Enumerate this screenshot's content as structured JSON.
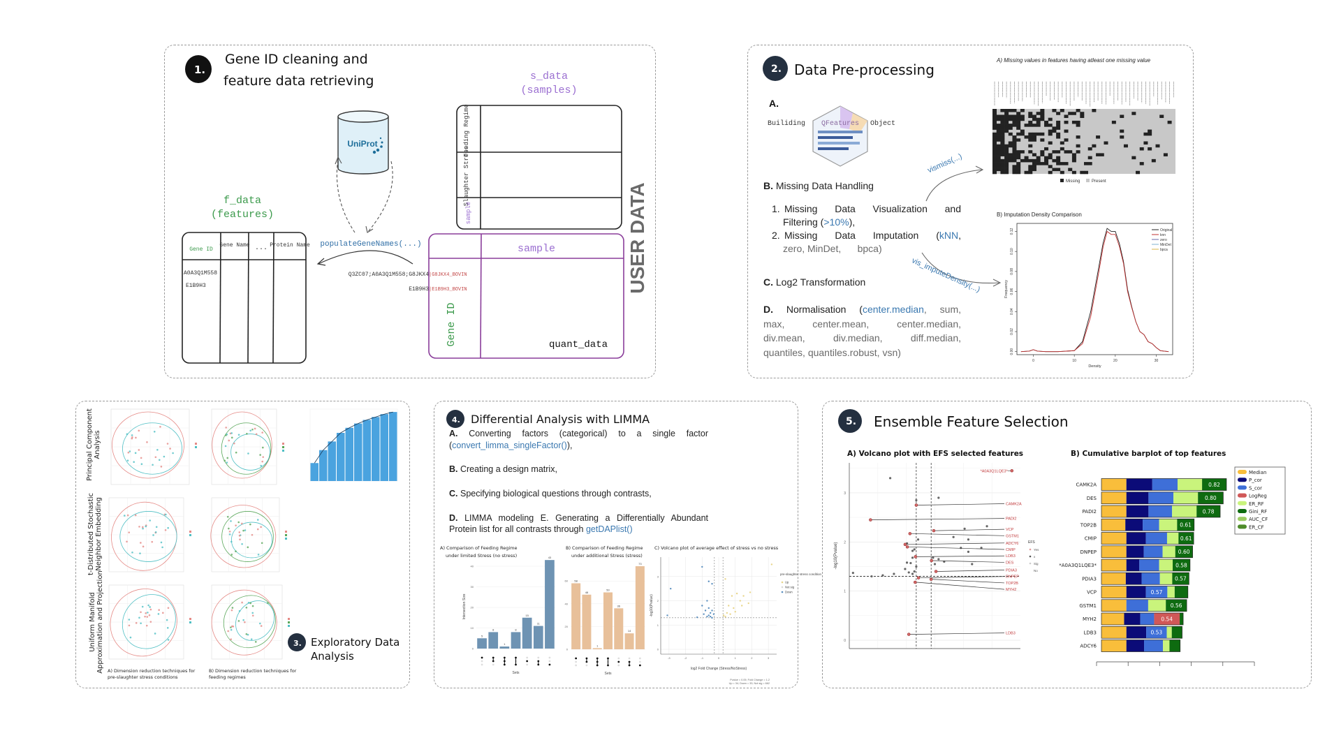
{
  "panel1": {
    "badge": "1.",
    "title_line1": "Gene ID  cleaning and",
    "title_line2": "feature data retrieving",
    "s_data_label": "s_data",
    "s_data_sub": "(samples)",
    "s_data_rows": [
      "Feeding Regime",
      "Slaughter Stress",
      "sample"
    ],
    "uniprot_logo": "UniProt",
    "f_data_label": "f_data",
    "f_data_sub": "(features)",
    "f_data_columns": [
      "Gene ID",
      "Gene Name",
      "...",
      "Protein Name"
    ],
    "f_data_values": [
      "A0A3Q1M558",
      "E1B9H3"
    ],
    "function_label": "populateGeneNames(...)",
    "raw_id_1_prefix": "Q3ZC07;A0A3Q1M558;G8JKX4",
    "raw_id_1_suffix": "|G8JKX4_BOVIN",
    "raw_id_2_prefix": "E1B9H3",
    "raw_id_2_suffix": "|E1B9H3_BOVIN",
    "quant_col_header": "sample",
    "quant_row_header": "Gene ID",
    "quant_label": "quant_data",
    "side_label": "USER DATA",
    "colors": {
      "purple": "#9b6fd1",
      "green": "#3c9a4c",
      "blue": "#2f6ea6",
      "red": "#c44a4a"
    }
  },
  "panel2": {
    "badge": "2.",
    "title": "Data Pre-processing",
    "a_label": "A.",
    "building": "Builiding",
    "qfeatures": "QFeatures",
    "object": "Object",
    "b_label": "B.",
    "b_text": "Missing Data Handling",
    "item1_num": "1.",
    "item1_text": "Missing Data Visualization and",
    "item1_text2a": "Filtering (",
    "item1_highlight": ">10%",
    "item1_text2b": "),",
    "item2_num": "2.",
    "item2_text": "Missing Data Imputation (",
    "item2_highlight": "kNN",
    "item2_text_end": ",",
    "item2_rest": "zero, MinDet,      bpca)",
    "c_label": "C.",
    "c_text": "Log2 Transformation",
    "d_label": "D.",
    "d_text": "Normalisation (",
    "d_highlight": "center.median",
    "d_rest1": ", sum,",
    "d_rest2": "max,  center.mean,  center.median,",
    "d_rest3": "div.mean,  div.median,  diff.median,",
    "d_rest4": "quantiles, quantiles.robust, vsn)",
    "arrow1_label": "vismiss(...)",
    "arrow2_label": "vis_imputeDensity(...)",
    "heatmap_title": "A) Missing values in features having atleast one missing value",
    "heatmap_legend": [
      "Missing",
      "Present"
    ],
    "heatmap_colors": {
      "missing": "#222222",
      "present": "#c8c8c8"
    }
  },
  "panel3": {
    "badge": "3.",
    "title_line1": "Exploratory Data",
    "title_line2": "Analysis",
    "row_labels": [
      [
        "Principal Component",
        "Analysis"
      ],
      [
        "t-Distributed Stochastic",
        "Neighbor Embedding"
      ],
      [
        "Uniform Manifold",
        "Approximation and Projection"
      ]
    ],
    "caption_a": [
      "A) Dimension reduction techniques for",
      "pre-slaughter stress conditions"
    ],
    "caption_b": [
      "B) Dimension reduction techniques for",
      "feeding regimes"
    ],
    "colors": {
      "red": "#e58a86",
      "teal": "#4fbfc4",
      "green": "#5aa75a",
      "bar": "#4aa3df"
    }
  },
  "panel4": {
    "badge": "4.",
    "title": "Differential Analysis with LIMMA",
    "a_label": "A.",
    "a_text": "Converting factors (categorical) to a single factor",
    "a_func": "convert_limma_singleFactor()",
    "b_label": "B.",
    "b_text": "Creating a design matrix,",
    "c_label": "C.",
    "c_text": "Specifying biological questions through contrasts,",
    "d_label": "D.",
    "d_text": "LIMMA modeling E. Generating a Differentially Abundant",
    "d_text2": "Protein list for all contrasts through ",
    "d_func": "getDAPlist()"
  },
  "panel5": {
    "badge": "5.",
    "title": "Ensemble Feature Selection"
  },
  "chart_data": [
    {
      "id": "upset_a",
      "type": "bar",
      "title": [
        "A) Comparison of Feeding Regime",
        "under limited Stress (no stress)"
      ],
      "ylabel": "Intersection Size",
      "xlabel": "Sets",
      "ylim": [
        0,
        45
      ],
      "yticks": [
        0,
        10,
        20,
        30,
        40
      ],
      "values": [
        5,
        8,
        1,
        8,
        15,
        11,
        43
      ],
      "set_membership": [
        [
          1
        ],
        [
          1,
          2
        ],
        [
          1,
          2,
          3
        ],
        [
          1,
          3
        ],
        [
          2
        ],
        [
          2,
          3
        ],
        [
          3
        ]
      ],
      "color": "#6e93b3"
    },
    {
      "id": "upset_b",
      "type": "bar",
      "title": [
        "B) Comparison of Feeding Regime",
        "under additional Stress (stress)"
      ],
      "xlabel": "Sets",
      "ylim": [
        0,
        75
      ],
      "yticks": [
        0,
        20,
        40,
        60
      ],
      "values": [
        58,
        48,
        1,
        50,
        36,
        14,
        73
      ],
      "set_membership": [
        [
          1
        ],
        [
          1,
          2
        ],
        [
          1,
          2,
          3
        ],
        [
          1,
          3
        ],
        [
          2
        ],
        [
          2,
          3
        ],
        [
          3
        ]
      ],
      "color": "#e8c09a"
    },
    {
      "id": "volcano_stress",
      "type": "scatter",
      "title": "C) Volcano plot of average effect of stress vs no stress",
      "xlabel": "log2 Fold Change (Stress/NoStress)",
      "ylabel": "-log10(Pvalue)",
      "xlim": [
        -3.5,
        3.5
      ],
      "ylim": [
        -0.2,
        3.8
      ],
      "xticks": [
        -3,
        -2,
        -1,
        0,
        1,
        2,
        3
      ],
      "yticks": [
        0,
        1,
        2,
        3
      ],
      "thresholds": {
        "x": [
          -0.26,
          0.26
        ],
        "y": 1.3
      },
      "legend_title": "pre-slaughter stress condition",
      "legend": [
        {
          "name": "Up",
          "color": "#e8d58a"
        },
        {
          "name": "Not sig",
          "color": "#d8d8d8"
        },
        {
          "name": "Down",
          "color": "#5b8fbf"
        }
      ],
      "caption": [
        "Pvalue = 0.05; Fold Change = 1.2",
        "Up = 34; Down = 33; Not sig = 662"
      ],
      "down_points": [
        [
          -1.0,
          3.4
        ],
        [
          -0.6,
          2.8
        ],
        [
          -0.4,
          2.7
        ],
        [
          -2.9,
          2.5
        ],
        [
          -0.7,
          2.0
        ],
        [
          -1.0,
          1.8
        ],
        [
          -0.6,
          1.7
        ],
        [
          -0.8,
          1.6
        ],
        [
          -0.4,
          1.6
        ],
        [
          -0.5,
          1.5
        ],
        [
          -0.9,
          1.45
        ],
        [
          -0.6,
          1.4
        ],
        [
          -0.3,
          1.45
        ],
        [
          -0.7,
          1.35
        ],
        [
          -0.5,
          1.35
        ],
        [
          -3.1,
          1.4
        ],
        [
          -1.3,
          1.32
        ],
        [
          -0.4,
          1.3
        ]
      ],
      "up_points": [
        [
          3.2,
          3.5
        ],
        [
          0.4,
          2.9
        ],
        [
          0.8,
          2.2
        ],
        [
          1.1,
          2.3
        ],
        [
          1.5,
          2.2
        ],
        [
          1.9,
          2.35
        ],
        [
          1.3,
          2.0
        ],
        [
          1.8,
          1.9
        ],
        [
          0.6,
          1.8
        ],
        [
          0.9,
          1.7
        ],
        [
          1.4,
          1.8
        ],
        [
          1.0,
          1.55
        ],
        [
          0.5,
          1.5
        ],
        [
          0.3,
          1.4
        ],
        [
          0.7,
          1.45
        ],
        [
          0.4,
          1.35
        ]
      ]
    },
    {
      "id": "imputation_density",
      "type": "line",
      "title": "B) Imputation Density Comparison",
      "xlabel": "Density",
      "ylabel": "Frequency",
      "xlim": [
        -4,
        34
      ],
      "ylim": [
        -0.003,
        0.128
      ],
      "xticks": [
        0,
        10,
        20,
        30
      ],
      "yticks": [
        0.0,
        0.02,
        0.04,
        0.06,
        0.08,
        0.1,
        0.12
      ],
      "x": [
        -3,
        -1,
        0,
        1,
        3,
        6,
        10,
        12,
        14,
        16,
        17,
        18,
        19,
        20,
        21,
        22,
        23,
        24,
        25,
        26,
        27,
        28,
        29,
        30,
        31,
        33
      ],
      "series": [
        {
          "name": "Original",
          "color": "#222222",
          "values": [
            0,
            0.0005,
            0.002,
            0.0005,
            0,
            0,
            0.001,
            0.01,
            0.04,
            0.085,
            0.108,
            0.123,
            0.12,
            0.12,
            0.108,
            0.09,
            0.062,
            0.045,
            0.03,
            0.02,
            0.017,
            0.01,
            0.008,
            0.004,
            0.001,
            0
          ]
        },
        {
          "name": "knn",
          "color": "#c03030",
          "values": [
            0,
            0.0005,
            0.002,
            0.0005,
            0,
            0,
            0.001,
            0.008,
            0.035,
            0.08,
            0.104,
            0.12,
            0.117,
            0.117,
            0.105,
            0.088,
            0.06,
            0.044,
            0.03,
            0.02,
            0.017,
            0.01,
            0.008,
            0.004,
            0.001,
            0
          ]
        },
        {
          "name": "zero",
          "color": "#6a6aaa",
          "values": null
        },
        {
          "name": "MinDet",
          "color": "#7fb0d0",
          "values": null
        },
        {
          "name": "bpca",
          "color": "#d9b44a",
          "values": null
        }
      ]
    },
    {
      "id": "efs_volcano",
      "type": "scatter",
      "title": "A) Volcano plot with EFS selected features",
      "ylabel": "-log10(Pvalue)",
      "xlim": [
        -2.0,
        2.6
      ],
      "ylim": [
        -0.17,
        3.61
      ],
      "yticks": [
        0,
        1,
        2,
        3
      ],
      "thresholds": {
        "x": [
          -0.2,
          0.2
        ],
        "y": 1.3
      },
      "legend_title": "EFS",
      "legend": [
        "Yes",
        "x",
        "Sig",
        "No"
      ],
      "selected": [
        {
          "label": "*A0A3Q1LQE3*",
          "x": 2.37,
          "y": 3.45
        },
        {
          "label": "CAMK2A",
          "x": -0.2,
          "y": 2.75
        },
        {
          "label": "PADI2",
          "x": -1.43,
          "y": 2.45
        },
        {
          "label": "VCP",
          "x": 0.27,
          "y": 2.23
        },
        {
          "label": "GSTM1",
          "x": -0.37,
          "y": 2.17
        },
        {
          "label": "ADCY6",
          "x": -0.5,
          "y": 1.95
        },
        {
          "label": "CMIP",
          "x": -0.44,
          "y": 1.9
        },
        {
          "label": "LDB3",
          "x": -0.22,
          "y": 1.7
        },
        {
          "label": "DES",
          "x": 0.21,
          "y": 1.62
        },
        {
          "label": "PDIA3",
          "x": 0.33,
          "y": 1.4
        },
        {
          "label": "DNPEP",
          "x": -0.14,
          "y": 1.27
        },
        {
          "label": "TOP2B",
          "x": 0.2,
          "y": 1.24
        },
        {
          "label": "MYH2",
          "x": -0.23,
          "y": 1.18
        },
        {
          "label": "LDB3",
          "x": -0.4,
          "y": 0.12
        }
      ],
      "other_points": [
        [
          -0.9,
          3.3
        ],
        [
          0.4,
          2.9
        ],
        [
          -0.2,
          2.85
        ],
        [
          1.1,
          2.27
        ],
        [
          1.7,
          2.32
        ],
        [
          0.8,
          2.1
        ],
        [
          1.2,
          2.05
        ],
        [
          -0.15,
          2.05
        ],
        [
          -0.45,
          1.97
        ],
        [
          -0.25,
          1.85
        ],
        [
          -0.3,
          1.82
        ],
        [
          1.0,
          1.88
        ],
        [
          1.55,
          1.88
        ],
        [
          1.2,
          1.8
        ],
        [
          -0.3,
          1.68
        ],
        [
          0.25,
          1.68
        ],
        [
          0.4,
          1.65
        ],
        [
          0.55,
          1.6
        ],
        [
          -0.35,
          1.57
        ],
        [
          0.3,
          1.55
        ],
        [
          1.3,
          1.55
        ],
        [
          -0.45,
          1.58
        ],
        [
          -0.2,
          1.5
        ],
        [
          -0.5,
          1.45
        ],
        [
          -0.3,
          1.35
        ],
        [
          -0.8,
          1.35
        ],
        [
          -1.1,
          1.32
        ],
        [
          -1.4,
          1.3
        ],
        [
          -1.9,
          1.37
        ],
        [
          -0.4,
          1.38
        ],
        [
          -0.25,
          1.4
        ]
      ]
    },
    {
      "id": "efs_barplot",
      "type": "bar",
      "orientation": "horizontal",
      "stacked": true,
      "title": "B) Cumulative barplot of top features",
      "categories": [
        "CAMK2A",
        "DES",
        "PADI2",
        "TOP2B",
        "CMIP",
        "DNPEP",
        "*A0A3Q1LQE3*",
        "PDIA3",
        "VCP",
        "GSTM1",
        "MYH2",
        "LDB3",
        "ADCY6"
      ],
      "legend_position": "top-right",
      "series": [
        {
          "name": "Median",
          "color": "#f9be3b",
          "values": [
            0.164,
            0.164,
            0.164,
            0.157,
            0.164,
            0.164,
            0.164,
            0.16,
            0.164,
            0.164,
            0.149,
            0.164,
            0.164
          ]
        },
        {
          "name": "P_cor",
          "color": "#0b0b78",
          "values": [
            0.17,
            0.145,
            0.145,
            0.114,
            0.128,
            0.114,
            0.085,
            0.104,
            0.128,
            0,
            0.106,
            0.13,
            0.116
          ]
        },
        {
          "name": "S_cor",
          "color": "#3e6fd8",
          "values": [
            0.166,
            0.164,
            0.155,
            0.108,
            0.139,
            0.124,
            0.13,
            0.12,
            0.141,
            0.143,
            0.091,
            0.135,
            0.124
          ]
        },
        {
          "name": "LogReg",
          "color": "#d05858",
          "values": [
            0,
            0,
            0,
            0,
            0,
            0,
            0,
            0,
            0,
            0,
            0.168,
            0,
            0
          ]
        },
        {
          "name": "ER_RF",
          "color": "#c9f47c",
          "values": [
            0.161,
            0.161,
            0.161,
            0.118,
            0.075,
            0.083,
            0.089,
            0.081,
            0.048,
            0.116,
            0,
            0.033,
            0.043
          ]
        },
        {
          "name": "Gini_RF",
          "color": "#0e6b10",
          "values": [
            0.16,
            0.166,
            0.155,
            0.112,
            0.1,
            0.114,
            0.114,
            0.11,
            0.087,
            0.137,
            0.023,
            0.068,
            0.07
          ]
        },
        {
          "name": "AUC_CF",
          "color": "#9ccc62",
          "values": [
            0,
            0,
            0,
            0,
            0,
            0,
            0,
            0,
            0,
            0,
            0,
            0,
            0
          ]
        },
        {
          "name": "ER_CF",
          "color": "#4e8b2a",
          "values": [
            0,
            0,
            0,
            0,
            0,
            0,
            0,
            0,
            0,
            0,
            0,
            0,
            0
          ]
        }
      ],
      "score_labels": [
        "0.82",
        "0.80",
        "0.78",
        "0.61",
        "0.61",
        "0.60",
        "0.58",
        "0.57",
        "0.57",
        "0.56",
        "0.54",
        "0.53",
        null
      ]
    }
  ]
}
